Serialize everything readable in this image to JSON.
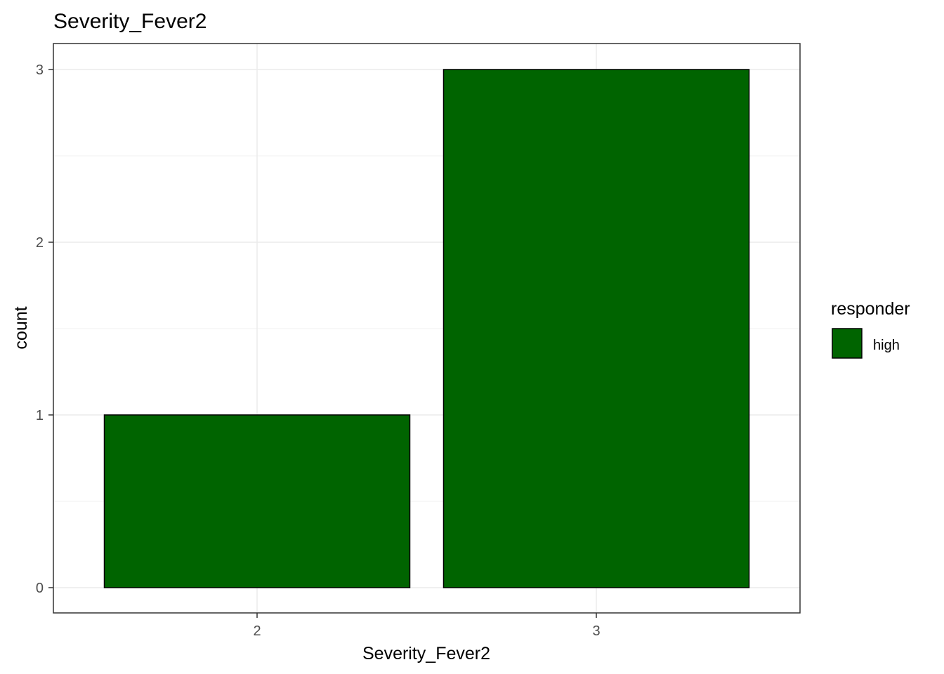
{
  "chart_data": {
    "type": "bar",
    "title": "Severity_Fever2",
    "xlabel": "Severity_Fever2",
    "ylabel": "count",
    "categories": [
      "2",
      "3"
    ],
    "series": [
      {
        "name": "high",
        "values": [
          1,
          3
        ],
        "color": "#006400"
      }
    ],
    "ylim": [
      0,
      3
    ],
    "yticks": [
      0,
      1,
      2,
      3
    ],
    "grid": true,
    "legend": {
      "title": "responder",
      "placement": "right"
    }
  }
}
